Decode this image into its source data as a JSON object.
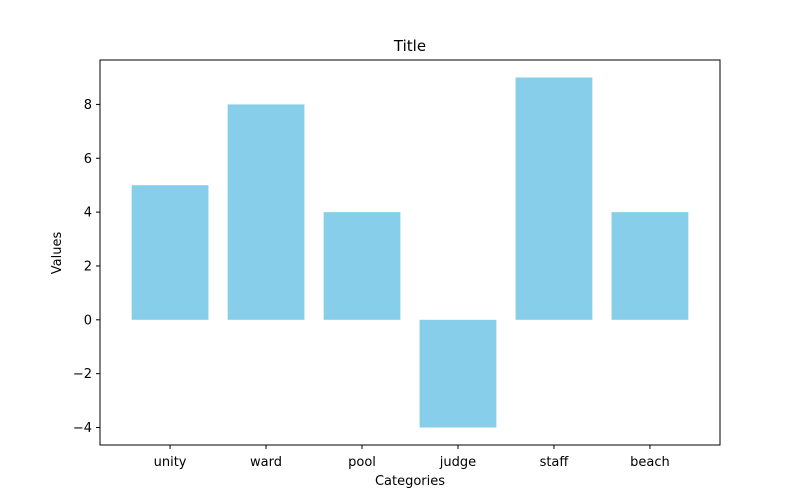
{
  "chart_data": {
    "type": "bar",
    "title": "Title",
    "xlabel": "Categories",
    "ylabel": "Values",
    "categories": [
      "unity",
      "ward",
      "pool",
      "judge",
      "staff",
      "beach"
    ],
    "values": [
      5,
      8,
      4,
      -4,
      9,
      4
    ],
    "ylim": [
      -4.65,
      9.65
    ],
    "yticks": [
      -4,
      -2,
      0,
      2,
      4,
      6,
      8
    ],
    "grid": false,
    "legend": "none",
    "bar_color": "#87CEEB"
  }
}
